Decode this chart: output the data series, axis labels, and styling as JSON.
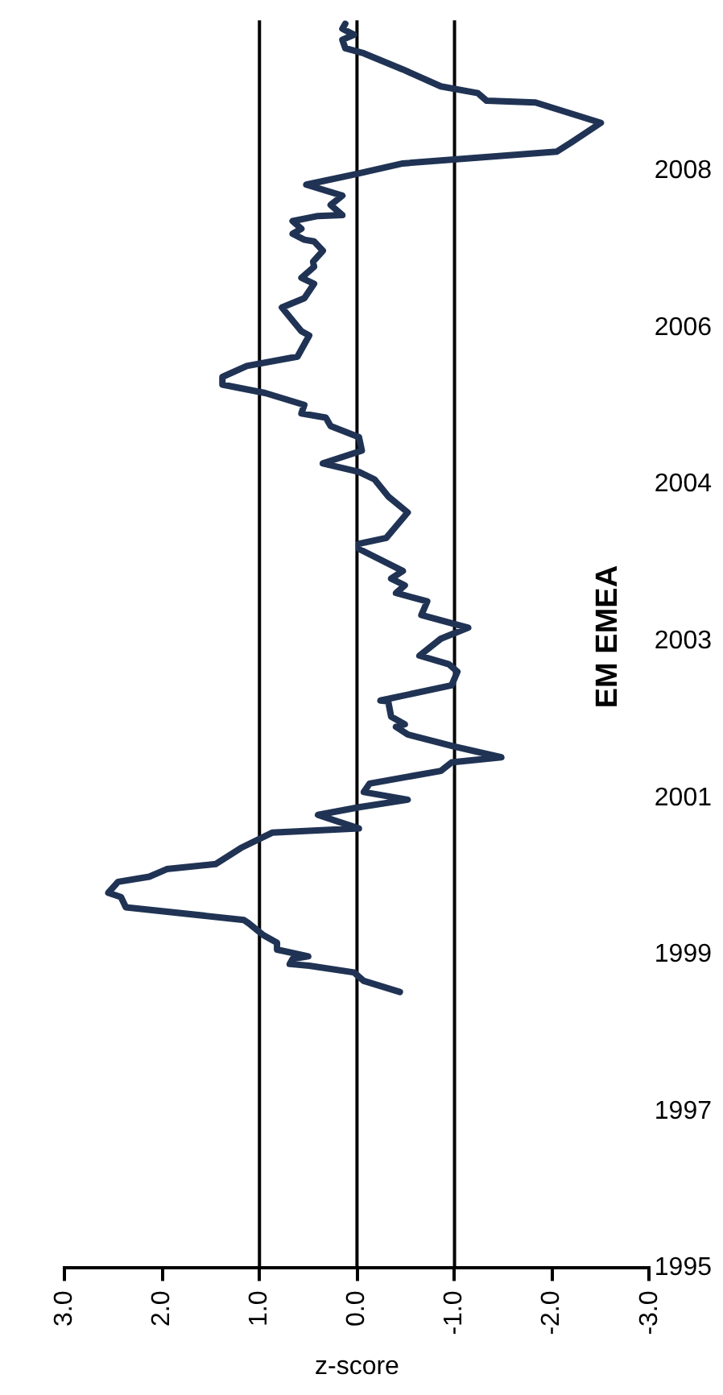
{
  "chart_data": {
    "type": "line",
    "title": "EM EMEA",
    "xlabel": "z-score",
    "color": "#203354",
    "x": [
      -0.44,
      -0.07,
      0.03,
      0.49,
      0.69,
      0.66,
      0.5,
      0.82,
      0.82,
      0.96,
      1.11,
      1.16,
      2.37,
      2.42,
      2.55,
      2.45,
      2.13,
      1.95,
      1.45,
      1.19,
      0.87,
      -0.02,
      0.4,
      -0.02,
      -0.52,
      -0.07,
      -0.13,
      -0.86,
      -0.97,
      -1.48,
      -0.99,
      -0.52,
      -0.4,
      -0.49,
      -0.35,
      -0.32,
      -0.24,
      -0.97,
      -1.03,
      -0.94,
      -0.64,
      -0.86,
      -1.14,
      -0.66,
      -0.72,
      -0.4,
      -0.49,
      -0.35,
      -0.47,
      -0.02,
      -0.02,
      -0.3,
      -0.52,
      -0.32,
      -0.18,
      -0.02,
      0.35,
      -0.05,
      -0.02,
      0.27,
      0.32,
      0.57,
      0.54,
      0.94,
      1.38,
      1.38,
      1.13,
      0.61,
      0.49,
      0.57,
      0.77,
      0.54,
      0.44,
      0.57,
      0.44,
      0.45,
      0.35,
      0.44,
      0.54,
      0.66,
      0.57,
      0.66,
      0.4,
      0.15,
      0.27,
      0.15,
      0.52,
      0.03,
      -0.47,
      -2.05,
      -2.2,
      -2.5,
      -1.83,
      -1.33,
      -1.24,
      -0.86,
      -0.47,
      -0.07,
      0.12,
      0.15,
      0.03,
      0.15,
      0.12
    ],
    "values": [
      1998.46,
      1998.59,
      1998.69,
      1998.77,
      1998.79,
      1998.85,
      1998.88,
      1998.96,
      1999.04,
      1999.13,
      1999.27,
      1999.31,
      1999.46,
      1999.58,
      1999.63,
      1999.76,
      1999.82,
      1999.91,
      1999.97,
      2000.16,
      2000.34,
      2000.39,
      2000.55,
      2000.64,
      2000.73,
      2000.82,
      2000.92,
      2001.07,
      2001.17,
      2001.23,
      2001.36,
      2001.5,
      2001.59,
      2001.62,
      2001.71,
      2001.89,
      2001.9,
      2002.08,
      2002.24,
      2002.33,
      2002.43,
      2002.63,
      2002.76,
      2002.91,
      2003.07,
      2003.17,
      2003.26,
      2003.34,
      2003.43,
      2003.69,
      2003.75,
      2003.82,
      2004.12,
      2004.31,
      2004.51,
      2004.6,
      2004.7,
      2004.85,
      2005.01,
      2005.14,
      2005.24,
      2005.29,
      2005.39,
      2005.53,
      2005.63,
      2005.72,
      2005.85,
      2005.96,
      2006.21,
      2006.26,
      2006.54,
      2006.65,
      2006.82,
      2006.89,
      2007.02,
      2007.08,
      2007.21,
      2007.32,
      2007.34,
      2007.41,
      2007.47,
      2007.56,
      2007.62,
      2007.63,
      2007.75,
      2007.86,
      2007.99,
      2008.11,
      2008.24,
      2008.38,
      2008.49,
      2008.72,
      2008.96,
      2008.98,
      2009.07,
      2009.15,
      2009.35,
      2009.54,
      2009.6,
      2009.7,
      2009.76,
      2009.83,
      2009.89
    ],
    "xlim": [
      3,
      -3
    ],
    "xticks": [
      {
        "value": 3,
        "label": "3.0"
      },
      {
        "value": 2,
        "label": "2.0"
      },
      {
        "value": 1,
        "label": "1.0"
      },
      {
        "value": 0,
        "label": "0.0"
      },
      {
        "value": -1,
        "label": "-1.0"
      },
      {
        "value": -2,
        "label": "-2.0"
      },
      {
        "value": -3,
        "label": "-3.0"
      }
    ],
    "ylim": [
      1995.2,
      2009.93
    ],
    "yticks": [
      {
        "value": 1995.2,
        "label": "1995"
      },
      {
        "value": 1997.05,
        "label": "1997"
      },
      {
        "value": 1998.9,
        "label": "1999"
      },
      {
        "value": 2000.75,
        "label": "2001"
      },
      {
        "value": 2002.6,
        "label": "2003"
      },
      {
        "value": 2004.45,
        "label": "2004"
      },
      {
        "value": 2006.3,
        "label": "2006"
      },
      {
        "value": 2008.15,
        "label": "2008"
      }
    ],
    "ref_lines": [
      {
        "axis": "x",
        "value": 1.0
      },
      {
        "axis": "x",
        "value": 0.0
      },
      {
        "axis": "x",
        "value": -1.0
      }
    ]
  }
}
